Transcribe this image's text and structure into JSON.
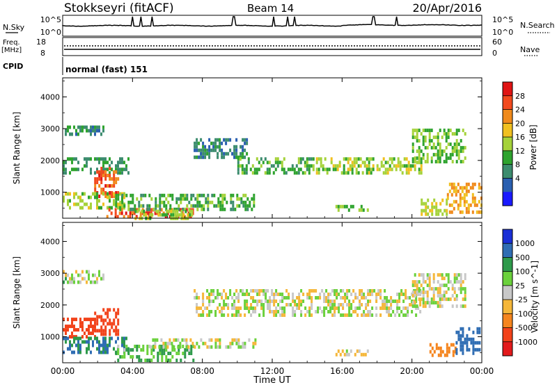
{
  "header": {
    "station": "Stokkseyri (fitACF)",
    "beam": "Beam 14",
    "date": "20/Apr/2016"
  },
  "noise_panel": {
    "left_label": "N.Sky",
    "right_label": "N.Search",
    "tick_top": "10^5",
    "tick_bottom": "10^0"
  },
  "freq_panel": {
    "left_label_1": "Freq.",
    "left_label_2": "[MHz]",
    "left_ticks": [
      "18",
      "8"
    ],
    "right_ticks": [
      "60",
      "0"
    ],
    "right_label": "Nave"
  },
  "cpid": {
    "label": "CPID",
    "value": "normal (fast) 151"
  },
  "axes": {
    "ylabel": "Slant Range [km]",
    "xlabel": "Time UT",
    "yticks": [
      "4000",
      "3000",
      "2000",
      "1000"
    ],
    "xticks": [
      "00:00",
      "04:00",
      "08:00",
      "12:00",
      "16:00",
      "20:00",
      "00:00"
    ]
  },
  "colors": {
    "power": [
      "#1a1aff",
      "#2a5fb0",
      "#3c8c6e",
      "#2ea32e",
      "#a5d23a",
      "#f0c020",
      "#f08a1c",
      "#f24a1e",
      "#e01414"
    ],
    "velocity": [
      "#e31a1c",
      "#f2421a",
      "#f5851e",
      "#f5b73a",
      "#c8c8c8",
      "#6bd13c",
      "#2e9a4b",
      "#2f6db3",
      "#1a2fd6"
    ],
    "power_panel_dominant": "#2a5fb0",
    "velocity_panel_dominant": "#bdbdbd"
  },
  "chart_data": [
    {
      "type": "heatmap",
      "name": "power",
      "xlabel": "Time UT",
      "ylabel": "Slant Range [km]",
      "xlim": [
        "00:00",
        "24:00"
      ],
      "ylim": [
        180,
        4600
      ],
      "colorbar": {
        "label": "Power [dB]",
        "ticks": [
          "28",
          "24",
          "20",
          "16",
          "12",
          "8",
          "4"
        ],
        "range": [
          0,
          32
        ]
      },
      "regions": [
        {
          "t_start": 0.0,
          "t_end": 2.3,
          "r_min": 2800,
          "r_max": 3100,
          "level": 8
        },
        {
          "t_start": 0.0,
          "t_end": 3.8,
          "r_min": 1600,
          "r_max": 2100,
          "level": 10
        },
        {
          "t_start": 1.8,
          "t_end": 3.2,
          "r_min": 900,
          "r_max": 1800,
          "level": 27
        },
        {
          "t_start": 0.0,
          "t_end": 3.5,
          "r_min": 550,
          "r_max": 1000,
          "level": 16
        },
        {
          "t_start": 2.5,
          "t_end": 7.5,
          "r_min": 270,
          "r_max": 500,
          "level": 28
        },
        {
          "t_start": 3.0,
          "t_end": 11.0,
          "r_min": 500,
          "r_max": 950,
          "level": 12
        },
        {
          "t_start": 4.0,
          "t_end": 7.5,
          "r_min": 200,
          "r_max": 450,
          "level": 16
        },
        {
          "t_start": 7.5,
          "t_end": 10.5,
          "r_min": 2100,
          "r_max": 2700,
          "level": 8
        },
        {
          "t_start": 10.0,
          "t_end": 14.5,
          "r_min": 1600,
          "r_max": 2100,
          "level": 12
        },
        {
          "t_start": 14.5,
          "t_end": 20.5,
          "r_min": 1600,
          "r_max": 2100,
          "level": 16
        },
        {
          "t_start": 20.0,
          "t_end": 23.0,
          "r_min": 2000,
          "r_max": 3000,
          "level": 14
        },
        {
          "t_start": 15.5,
          "t_end": 17.5,
          "r_min": 400,
          "r_max": 600,
          "level": 14
        },
        {
          "t_start": 20.5,
          "t_end": 22.0,
          "r_min": 350,
          "r_max": 800,
          "level": 18
        },
        {
          "t_start": 22.0,
          "t_end": 24.0,
          "r_min": 400,
          "r_max": 1300,
          "level": 22
        }
      ]
    },
    {
      "type": "heatmap",
      "name": "velocity",
      "xlabel": "Time UT",
      "ylabel": "Slant Range [km]",
      "xlim": [
        "00:00",
        "24:00"
      ],
      "ylim": [
        180,
        4600
      ],
      "colorbar": {
        "label": "Velocity [m s^-1]",
        "ticks": [
          "1000",
          "500",
          "100",
          "25",
          "-25",
          "-100",
          "-500",
          "-1000"
        ]
      },
      "regions": [
        {
          "t_start": 0.0,
          "t_end": 2.3,
          "r_min": 2700,
          "r_max": 3100,
          "level": 25
        },
        {
          "t_start": 0.0,
          "t_end": 1.8,
          "r_min": 1000,
          "r_max": 1600,
          "level": -500
        },
        {
          "t_start": 1.8,
          "t_end": 3.2,
          "r_min": 1100,
          "r_max": 1900,
          "level": -600
        },
        {
          "t_start": 0.0,
          "t_end": 3.8,
          "r_min": 500,
          "r_max": 1000,
          "level": 300
        },
        {
          "t_start": 3.0,
          "t_end": 7.5,
          "r_min": 250,
          "r_max": 750,
          "level": 100
        },
        {
          "t_start": 5.0,
          "t_end": 11.0,
          "r_min": 650,
          "r_max": 950,
          "level": 0
        },
        {
          "t_start": 7.5,
          "t_end": 20.5,
          "r_min": 1700,
          "r_max": 2500,
          "level": 0
        },
        {
          "t_start": 20.0,
          "t_end": 23.0,
          "r_min": 2000,
          "r_max": 3000,
          "level": 0
        },
        {
          "t_start": 15.5,
          "t_end": 17.5,
          "r_min": 400,
          "r_max": 600,
          "level": 0
        },
        {
          "t_start": 21.0,
          "t_end": 22.5,
          "r_min": 400,
          "r_max": 800,
          "level": -300
        },
        {
          "t_start": 22.5,
          "t_end": 24.0,
          "r_min": 500,
          "r_max": 1300,
          "level": 500
        }
      ]
    }
  ]
}
